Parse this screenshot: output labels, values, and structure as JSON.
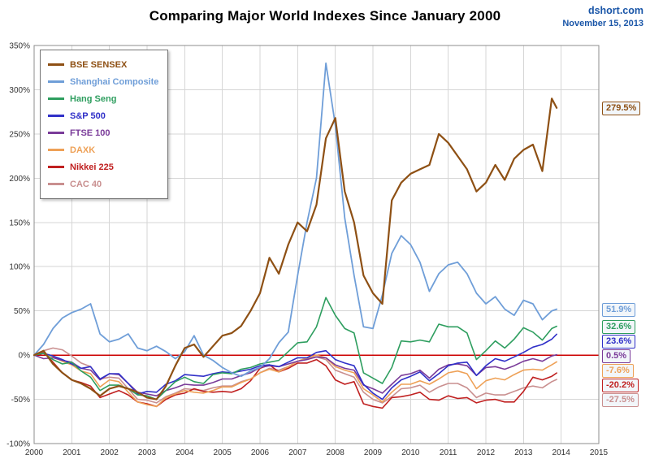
{
  "header": {
    "title": "Comparing Major World Indexes Since January 2000",
    "site": "dshort.com",
    "date": "November 15, 2013"
  },
  "chart_data": {
    "type": "line",
    "title": "Comparing Major World Indexes Since January 2000",
    "xlabel": "",
    "ylabel": "",
    "xlim": [
      2000,
      2015
    ],
    "ylim": [
      -100,
      350
    ],
    "grid": true,
    "legend_position": "top-left",
    "x_ticks": [
      2000,
      2001,
      2002,
      2003,
      2004,
      2005,
      2006,
      2007,
      2008,
      2009,
      2010,
      2011,
      2012,
      2013,
      2014,
      2015
    ],
    "y_ticks": [
      -100,
      -50,
      0,
      50,
      100,
      150,
      200,
      250,
      300,
      350
    ],
    "zero_line": {
      "value": 0,
      "color": "#cc0000"
    },
    "x": [
      2000,
      2000.25,
      2000.5,
      2000.75,
      2001,
      2001.25,
      2001.5,
      2001.75,
      2002,
      2002.25,
      2002.5,
      2002.75,
      2003,
      2003.25,
      2003.5,
      2003.75,
      2004,
      2004.25,
      2004.5,
      2004.75,
      2005,
      2005.25,
      2005.5,
      2005.75,
      2006,
      2006.25,
      2006.5,
      2006.75,
      2007,
      2007.25,
      2007.5,
      2007.75,
      2008,
      2008.25,
      2008.5,
      2008.75,
      2009,
      2009.25,
      2009.5,
      2009.75,
      2010,
      2010.25,
      2010.5,
      2010.75,
      2011,
      2011.25,
      2011.5,
      2011.75,
      2012,
      2012.25,
      2012.5,
      2012.75,
      2013,
      2013.25,
      2013.5,
      2013.75,
      2013.88
    ],
    "series": [
      {
        "name": "BSE SENSEX",
        "color": "#8e5014",
        "width": 2.2,
        "end_label": "279.5%",
        "values": [
          0,
          5,
          -10,
          -20,
          -28,
          -32,
          -38,
          -46,
          -38,
          -35,
          -38,
          -42,
          -48,
          -50,
          -35,
          -12,
          8,
          12,
          -2,
          10,
          22,
          25,
          33,
          50,
          70,
          110,
          92,
          125,
          150,
          140,
          170,
          245,
          268,
          185,
          150,
          90,
          70,
          58,
          175,
          195,
          205,
          210,
          215,
          250,
          240,
          225,
          210,
          185,
          195,
          215,
          198,
          222,
          232,
          238,
          208,
          290,
          279.5
        ]
      },
      {
        "name": "Shanghai Composite",
        "color": "#6f9ed8",
        "width": 1.8,
        "end_label": "51.9%",
        "values": [
          0,
          12,
          30,
          42,
          48,
          52,
          58,
          24,
          15,
          18,
          24,
          8,
          5,
          10,
          4,
          -4,
          4,
          22,
          0,
          -6,
          -14,
          -20,
          -24,
          -18,
          -14,
          -4,
          14,
          26,
          90,
          150,
          200,
          330,
          260,
          155,
          90,
          32,
          30,
          68,
          115,
          135,
          125,
          105,
          72,
          92,
          102,
          105,
          92,
          70,
          58,
          66,
          52,
          45,
          62,
          58,
          40,
          50,
          51.9
        ]
      },
      {
        "name": "Hang Seng",
        "color": "#2e9e5f",
        "width": 1.6,
        "end_label": "32.6%",
        "values": [
          0,
          2,
          -5,
          -10,
          -8,
          -18,
          -25,
          -40,
          -34,
          -34,
          -38,
          -45,
          -46,
          -50,
          -40,
          -30,
          -25,
          -30,
          -32,
          -22,
          -20,
          -21,
          -16,
          -14,
          -10,
          -8,
          -6,
          4,
          14,
          15,
          32,
          65,
          45,
          30,
          25,
          -20,
          -26,
          -32,
          -14,
          16,
          15,
          17,
          15,
          35,
          32,
          32,
          25,
          -5,
          5,
          16,
          8,
          18,
          31,
          26,
          17,
          30,
          32.6
        ]
      },
      {
        "name": "S&P 500",
        "color": "#3030c8",
        "width": 1.6,
        "end_label": "23.6%",
        "values": [
          0,
          2,
          -1,
          -5,
          -10,
          -15,
          -13,
          -27,
          -21,
          -21,
          -32,
          -44,
          -41,
          -42,
          -33,
          -29,
          -22,
          -23,
          -24,
          -21,
          -19,
          -20,
          -18,
          -16,
          -12,
          -11,
          -13,
          -8,
          -3,
          -3,
          3,
          5,
          -5,
          -9,
          -12,
          -33,
          -43,
          -50,
          -37,
          -28,
          -24,
          -19,
          -29,
          -21,
          -12,
          -9,
          -8,
          -23,
          -12,
          -4,
          -7,
          -2,
          3,
          9,
          12,
          18,
          23.6
        ]
      },
      {
        "name": "FTSE 100",
        "color": "#7a3b99",
        "width": 1.6,
        "end_label": "0.5%",
        "values": [
          0,
          -4,
          -3,
          -6,
          -8,
          -15,
          -17,
          -28,
          -21,
          -22,
          -32,
          -42,
          -44,
          -46,
          -40,
          -37,
          -33,
          -34,
          -34,
          -31,
          -27,
          -27,
          -23,
          -20,
          -14,
          -12,
          -13,
          -10,
          -7,
          -5,
          -2,
          -3,
          -11,
          -15,
          -17,
          -34,
          -38,
          -43,
          -33,
          -23,
          -21,
          -17,
          -26,
          -16,
          -11,
          -10,
          -12,
          -23,
          -14,
          -13,
          -16,
          -12,
          -7,
          -4,
          -7,
          -1,
          0.5
        ]
      },
      {
        "name": "DAXK",
        "color": "#eea157",
        "width": 1.6,
        "end_label": "-7.6%",
        "values": [
          0,
          2,
          -2,
          -7,
          -11,
          -18,
          -21,
          -36,
          -28,
          -30,
          -42,
          -53,
          -56,
          -58,
          -48,
          -44,
          -40,
          -42,
          -43,
          -40,
          -36,
          -36,
          -31,
          -27,
          -20,
          -16,
          -19,
          -13,
          -7,
          -3,
          0,
          -3,
          -13,
          -17,
          -20,
          -38,
          -45,
          -53,
          -42,
          -33,
          -33,
          -29,
          -33,
          -27,
          -20,
          -18,
          -21,
          -38,
          -29,
          -26,
          -28,
          -22,
          -17,
          -16,
          -17,
          -11,
          -7.6
        ]
      },
      {
        "name": "Nikkei 225",
        "color": "#c02020",
        "width": 1.6,
        "end_label": "-20.2%",
        "values": [
          0,
          4,
          -8,
          -20,
          -28,
          -31,
          -35,
          -48,
          -44,
          -40,
          -45,
          -53,
          -55,
          -58,
          -50,
          -45,
          -43,
          -38,
          -41,
          -42,
          -41,
          -42,
          -38,
          -29,
          -15,
          -11,
          -19,
          -15,
          -9,
          -9,
          -5,
          -12,
          -28,
          -33,
          -30,
          -55,
          -58,
          -60,
          -48,
          -47,
          -45,
          -42,
          -50,
          -51,
          -46,
          -49,
          -48,
          -54,
          -51,
          -50,
          -53,
          -53,
          -41,
          -25,
          -28,
          -24,
          -20.2
        ]
      },
      {
        "name": "CAC 40",
        "color": "#c98f8f",
        "width": 1.6,
        "end_label": "-27.5%",
        "values": [
          0,
          5,
          8,
          6,
          -1,
          -9,
          -13,
          -27,
          -25,
          -26,
          -38,
          -50,
          -51,
          -54,
          -47,
          -43,
          -38,
          -39,
          -40,
          -37,
          -35,
          -35,
          -30,
          -27,
          -20,
          -15,
          -17,
          -13,
          -7,
          -4,
          -2,
          -5,
          -17,
          -21,
          -25,
          -42,
          -50,
          -54,
          -47,
          -38,
          -37,
          -34,
          -42,
          -36,
          -32,
          -32,
          -37,
          -48,
          -43,
          -45,
          -45,
          -41,
          -37,
          -35,
          -37,
          -30,
          -27.5
        ]
      }
    ]
  }
}
